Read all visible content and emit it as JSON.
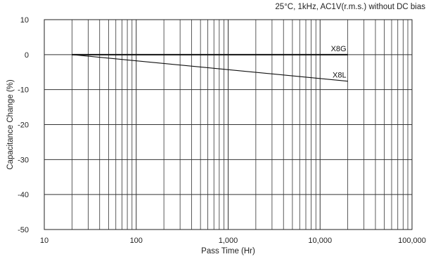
{
  "chart_data": {
    "type": "line",
    "title": "25°C, 1kHz, AC1V(r.m.s.) without DC bias",
    "xlabel": "Pass Time (Hr)",
    "ylabel": "Capacitance Change (%)",
    "xscale": "log",
    "xlim": [
      10,
      100000
    ],
    "ylim": [
      -50,
      10
    ],
    "grid": true,
    "xticks": [
      10,
      100,
      1000,
      10000,
      100000
    ],
    "xtick_labels": [
      "10",
      "100",
      "1,000",
      "10,000",
      "100,000"
    ],
    "yticks": [
      10,
      0,
      -10,
      -20,
      -30,
      -40,
      -50
    ],
    "ytick_labels": [
      "10",
      "0",
      "-10",
      "-20",
      "-30",
      "-40",
      "-50"
    ],
    "series": [
      {
        "name": "X8G",
        "x": [
          20,
          20000
        ],
        "y": [
          0,
          0
        ],
        "color": "#111111"
      },
      {
        "name": "X8L",
        "x": [
          20,
          20000
        ],
        "y": [
          0,
          -7.6
        ],
        "color": "#111111"
      }
    ]
  }
}
